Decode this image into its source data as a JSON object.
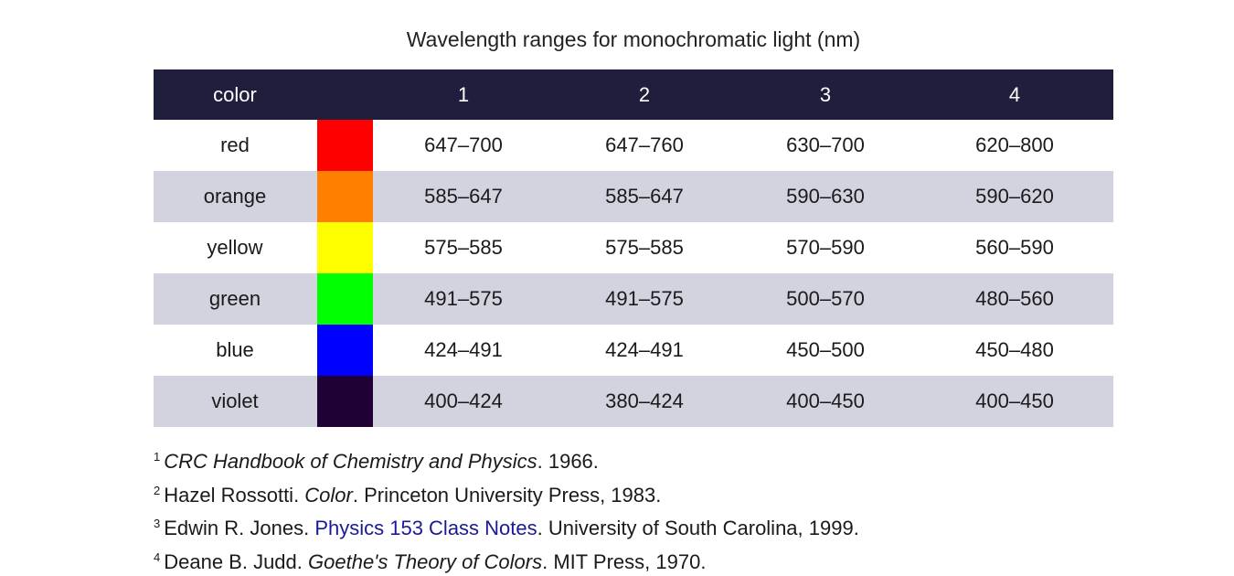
{
  "title": "Wavelength ranges for monochromatic light (nm)",
  "table": {
    "headers": [
      "color",
      "",
      "1",
      "2",
      "3",
      "4"
    ],
    "rows": [
      {
        "color": "red",
        "swatch": "#ff0000",
        "values": [
          "647–700",
          "647–760",
          "630–700",
          "620–800"
        ]
      },
      {
        "color": "orange",
        "swatch": "#ff7f00",
        "values": [
          "585–647",
          "585–647",
          "590–630",
          "590–620"
        ]
      },
      {
        "color": "yellow",
        "swatch": "#ffff00",
        "values": [
          "575–585",
          "575–585",
          "570–590",
          "560–590"
        ]
      },
      {
        "color": "green",
        "swatch": "#00ff00",
        "values": [
          "491–575",
          "491–575",
          "500–570",
          "480–560"
        ]
      },
      {
        "color": "blue",
        "swatch": "#0000ff",
        "values": [
          "424–491",
          "424–491",
          "450–500",
          "450–480"
        ]
      },
      {
        "color": "violet",
        "swatch": "#1e0034",
        "values": [
          "400–424",
          "380–424",
          "400–450",
          "400–450"
        ]
      }
    ]
  },
  "footnotes": [
    {
      "num": "1",
      "parts": [
        {
          "text": "CRC Handbook of Chemistry and Physics",
          "style": "italic"
        },
        {
          "text": ". 1966.",
          "style": "normal"
        }
      ]
    },
    {
      "num": "2",
      "parts": [
        {
          "text": "Hazel Rossotti. ",
          "style": "normal"
        },
        {
          "text": "Color",
          "style": "italic"
        },
        {
          "text": ". Princeton University Press, 1983.",
          "style": "normal"
        }
      ]
    },
    {
      "num": "3",
      "parts": [
        {
          "text": "Edwin R. Jones. ",
          "style": "normal"
        },
        {
          "text": "Physics 153 Class Notes",
          "style": "link"
        },
        {
          "text": ". University of South Carolina, 1999.",
          "style": "normal"
        }
      ]
    },
    {
      "num": "4",
      "parts": [
        {
          "text": "Deane B. Judd. ",
          "style": "normal"
        },
        {
          "text": "Goethe's Theory of Colors",
          "style": "italic"
        },
        {
          "text": ". MIT Press, 1970.",
          "style": "normal"
        }
      ]
    }
  ]
}
